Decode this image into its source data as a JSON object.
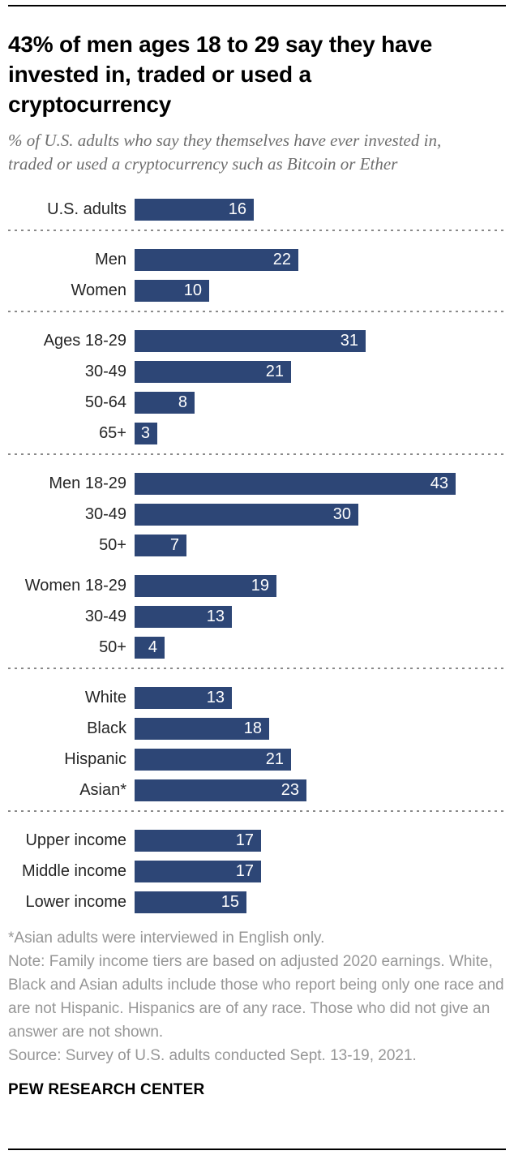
{
  "header": {
    "title": "43% of men ages 18 to 29 say they have invested in, traded or used a cryptocurrency",
    "subtitle": "% of U.S. adults who say they themselves have ever invested in, traded or used a cryptocurrency such as Bitcoin or Ether"
  },
  "chart_data": {
    "type": "bar",
    "orientation": "horizontal",
    "unit": "% of U.S. adults",
    "bar_color": "#2d4676",
    "value_label_color": "#ffffff",
    "divider_color": "#8a8a8a",
    "xlim": [
      0,
      47
    ],
    "sections": [
      {
        "rows": [
          {
            "label": "U.S. adults",
            "value": 16
          }
        ],
        "divider_after": "dotted"
      },
      {
        "rows": [
          {
            "label": "Men",
            "value": 22
          },
          {
            "label": "Women",
            "value": 10
          }
        ],
        "divider_after": "dotted"
      },
      {
        "rows": [
          {
            "label": "Ages 18-29",
            "value": 31
          },
          {
            "label": "30-49",
            "value": 21
          },
          {
            "label": "50-64",
            "value": 8
          },
          {
            "label": "65+",
            "value": 3
          }
        ],
        "divider_after": "dotted"
      },
      {
        "rows": [
          {
            "label": "Men 18-29",
            "value": 43
          },
          {
            "label": "30-49",
            "value": 30
          },
          {
            "label": "50+",
            "value": 7
          }
        ],
        "divider_after": "gap"
      },
      {
        "rows": [
          {
            "label": "Women 18-29",
            "value": 19
          },
          {
            "label": "30-49",
            "value": 13
          },
          {
            "label": "50+",
            "value": 4
          }
        ],
        "divider_after": "dotted"
      },
      {
        "rows": [
          {
            "label": "White",
            "value": 13
          },
          {
            "label": "Black",
            "value": 18
          },
          {
            "label": "Hispanic",
            "value": 21
          },
          {
            "label": "Asian*",
            "value": 23
          }
        ],
        "divider_after": "dotted"
      },
      {
        "rows": [
          {
            "label": "Upper income",
            "value": 17
          },
          {
            "label": "Middle income",
            "value": 17
          },
          {
            "label": "Lower income",
            "value": 15
          }
        ],
        "divider_after": "none"
      }
    ]
  },
  "footer": {
    "asterisk_note": "*Asian adults were interviewed in English only.",
    "note": "Note: Family income tiers are based on adjusted 2020 earnings. White, Black and Asian adults include those who report being only one race and are not Hispanic. Hispanics are of any race. Those who did not give an answer are not shown.",
    "source": "Source: Survey of U.S. adults conducted Sept. 13-19, 2021.",
    "branding": "PEW RESEARCH CENTER"
  }
}
